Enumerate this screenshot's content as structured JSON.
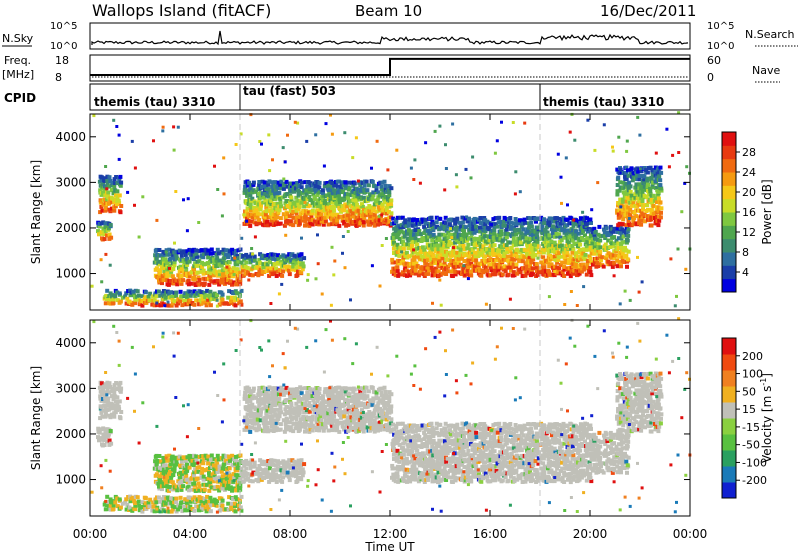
{
  "header": {
    "station": "Wallops Island (fitACF)",
    "beam": "Beam 10",
    "date": "16/Dec/2011"
  },
  "strips": {
    "nsky": {
      "label": "N.Sky",
      "ticks": [
        "10^5",
        "10^0"
      ]
    },
    "nsearch": {
      "label": "N.Search",
      "ticks": [
        "10^5",
        "10^0"
      ]
    },
    "freq": {
      "label": "Freq.",
      "unit": "[MHz]",
      "ticks": [
        "18",
        "8"
      ],
      "levels": [
        {
          "from_ut": 0.0,
          "to_ut": 12.0,
          "mhz": 10.3
        },
        {
          "from_ut": 12.0,
          "to_ut": 24.0,
          "mhz": 16.5
        }
      ]
    },
    "nave": {
      "label": "Nave",
      "ticks": [
        "60",
        "0"
      ]
    },
    "cpid": {
      "label": "CPID",
      "modes": [
        {
          "start_ut": 0.0,
          "label": "themis (tau) 3310"
        },
        {
          "start_ut": 6.0,
          "label": "tau (fast) 503"
        },
        {
          "start_ut": 18.0,
          "label": "themis (tau) 3310"
        }
      ]
    }
  },
  "chart_data": [
    {
      "type": "heatmap",
      "quantity": "power",
      "xlabel": "",
      "ylabel": "Slant Range [km]",
      "xlim": [
        0,
        24
      ],
      "ylim": [
        200,
        4500
      ],
      "yticks": [
        "4000",
        "3000",
        "2000",
        "1000"
      ],
      "colorbar": {
        "label": "Power [dB]",
        "ticks": [
          "28",
          "24",
          "20",
          "16",
          "12",
          "8",
          "4"
        ],
        "colors": [
          "#0000e0",
          "#1a3ea8",
          "#2e6fa0",
          "#3c8c6e",
          "#4fa64e",
          "#7fc840",
          "#c8dc28",
          "#f5c818",
          "#f59a10",
          "#f06a10",
          "#e83a10",
          "#e01010"
        ],
        "range": [
          0,
          32
        ]
      },
      "echo_regions": [
        {
          "t": [
            0.3,
            1.2
          ],
          "r": [
            2300,
            3100
          ]
        },
        {
          "t": [
            0.2,
            0.8
          ],
          "r": [
            1700,
            2100
          ]
        },
        {
          "t": [
            2.5,
            6.0
          ],
          "r": [
            700,
            1500
          ]
        },
        {
          "t": [
            6.0,
            8.5
          ],
          "r": [
            900,
            1400
          ]
        },
        {
          "t": [
            0.5,
            6.0
          ],
          "r": [
            250,
            600
          ]
        },
        {
          "t": [
            6.1,
            12.0
          ],
          "r": [
            2000,
            3000
          ]
        },
        {
          "t": [
            12.0,
            20.0
          ],
          "r": [
            900,
            2200
          ]
        },
        {
          "t": [
            20.0,
            21.5
          ],
          "r": [
            1100,
            2000
          ]
        },
        {
          "t": [
            21.0,
            22.8
          ],
          "r": [
            2000,
            3300
          ]
        }
      ]
    },
    {
      "type": "heatmap",
      "quantity": "velocity",
      "xlabel": "Time UT",
      "ylabel": "Slant Range [km]",
      "x_ticks": [
        "00:00",
        "04:00",
        "08:00",
        "12:00",
        "16:00",
        "20:00",
        "00:00"
      ],
      "xlim": [
        0,
        24
      ],
      "ylim": [
        200,
        4500
      ],
      "yticks": [
        "4000",
        "3000",
        "2000",
        "1000"
      ],
      "colorbar": {
        "label": "Velocity [m s^-1]",
        "ticks": [
          "200",
          "100",
          "50",
          "15",
          "-15",
          "-50",
          "-100",
          "-200"
        ],
        "colors": [
          "#1020d0",
          "#1a7ab8",
          "#2aa060",
          "#58c040",
          "#8ad040",
          "#c0c0b8",
          "#f0b020",
          "#f08020",
          "#f04a10",
          "#e01010"
        ],
        "range": [
          -250,
          250
        ]
      },
      "ground_scatter_color": "#c0c0b8"
    }
  ]
}
